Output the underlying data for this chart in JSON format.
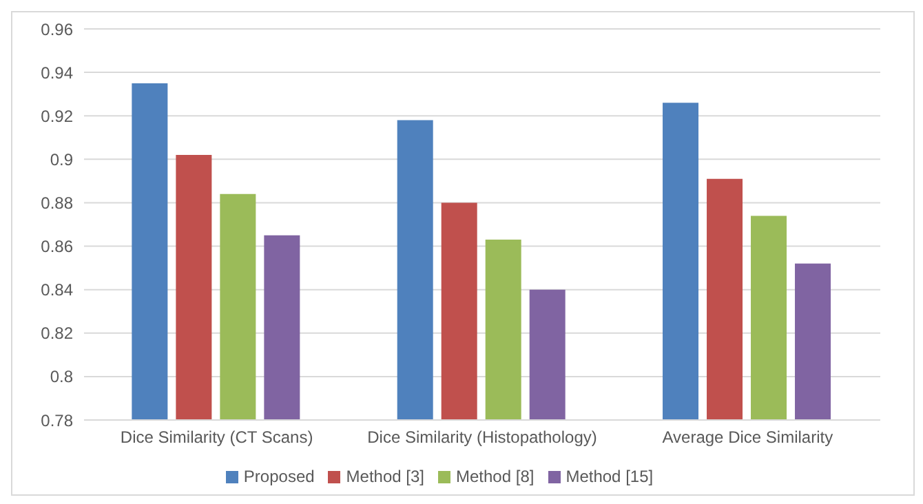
{
  "chart_data": {
    "type": "bar",
    "categories": [
      "Dice Similarity (CT Scans)",
      "Dice Similarity (Histopathology)",
      "Average Dice Similarity"
    ],
    "series": [
      {
        "name": "Proposed",
        "color": "#4f81bd",
        "values": [
          0.935,
          0.918,
          0.926
        ]
      },
      {
        "name": "Method [3]",
        "color": "#c0504d",
        "values": [
          0.902,
          0.88,
          0.891
        ]
      },
      {
        "name": "Method [8]",
        "color": "#9bbb59",
        "values": [
          0.884,
          0.863,
          0.874
        ]
      },
      {
        "name": "Method [15]",
        "color": "#8064a2",
        "values": [
          0.865,
          0.84,
          0.852
        ]
      }
    ],
    "ylim": [
      0.78,
      0.96
    ],
    "yticks": [
      0.78,
      0.8,
      0.82,
      0.84,
      0.86,
      0.88,
      0.9,
      0.92,
      0.94,
      0.96
    ],
    "grid": "y",
    "legend": "bottom"
  }
}
